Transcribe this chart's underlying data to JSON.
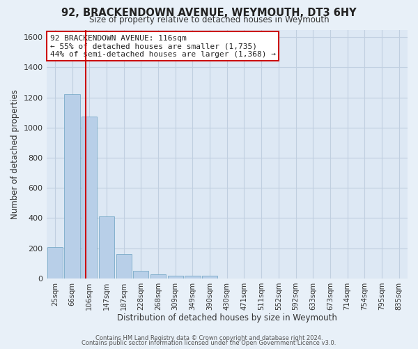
{
  "title": "92, BRACKENDOWN AVENUE, WEYMOUTH, DT3 6HY",
  "subtitle": "Size of property relative to detached houses in Weymouth",
  "xlabel": "Distribution of detached houses by size in Weymouth",
  "ylabel": "Number of detached properties",
  "bar_categories": [
    "25sqm",
    "66sqm",
    "106sqm",
    "147sqm",
    "187sqm",
    "228sqm",
    "268sqm",
    "309sqm",
    "349sqm",
    "390sqm",
    "430sqm",
    "471sqm",
    "511sqm",
    "552sqm",
    "592sqm",
    "633sqm",
    "673sqm",
    "714sqm",
    "754sqm",
    "795sqm",
    "835sqm"
  ],
  "bar_values": [
    205,
    1220,
    1075,
    410,
    160,
    50,
    25,
    15,
    15,
    15,
    0,
    0,
    0,
    0,
    0,
    0,
    0,
    0,
    0,
    0,
    0
  ],
  "bar_color": "#b8cfe8",
  "bar_edgecolor": "#7aaac8",
  "ylim": [
    0,
    1650
  ],
  "yticks": [
    0,
    200,
    400,
    600,
    800,
    1000,
    1200,
    1400,
    1600
  ],
  "vline_x": 1.77,
  "vline_color": "#cc0000",
  "annotation_title": "92 BRACKENDOWN AVENUE: 116sqm",
  "annotation_line1": "← 55% of detached houses are smaller (1,735)",
  "annotation_line2": "44% of semi-detached houses are larger (1,368) →",
  "annotation_box_color": "#ffffff",
  "annotation_box_edgecolor": "#cc0000",
  "bg_color": "#e8f0f8",
  "plot_bg_color": "#dde8f4",
  "grid_color": "#c0cfe0",
  "footer_line1": "Contains HM Land Registry data © Crown copyright and database right 2024.",
  "footer_line2": "Contains public sector information licensed under the Open Government Licence v3.0."
}
